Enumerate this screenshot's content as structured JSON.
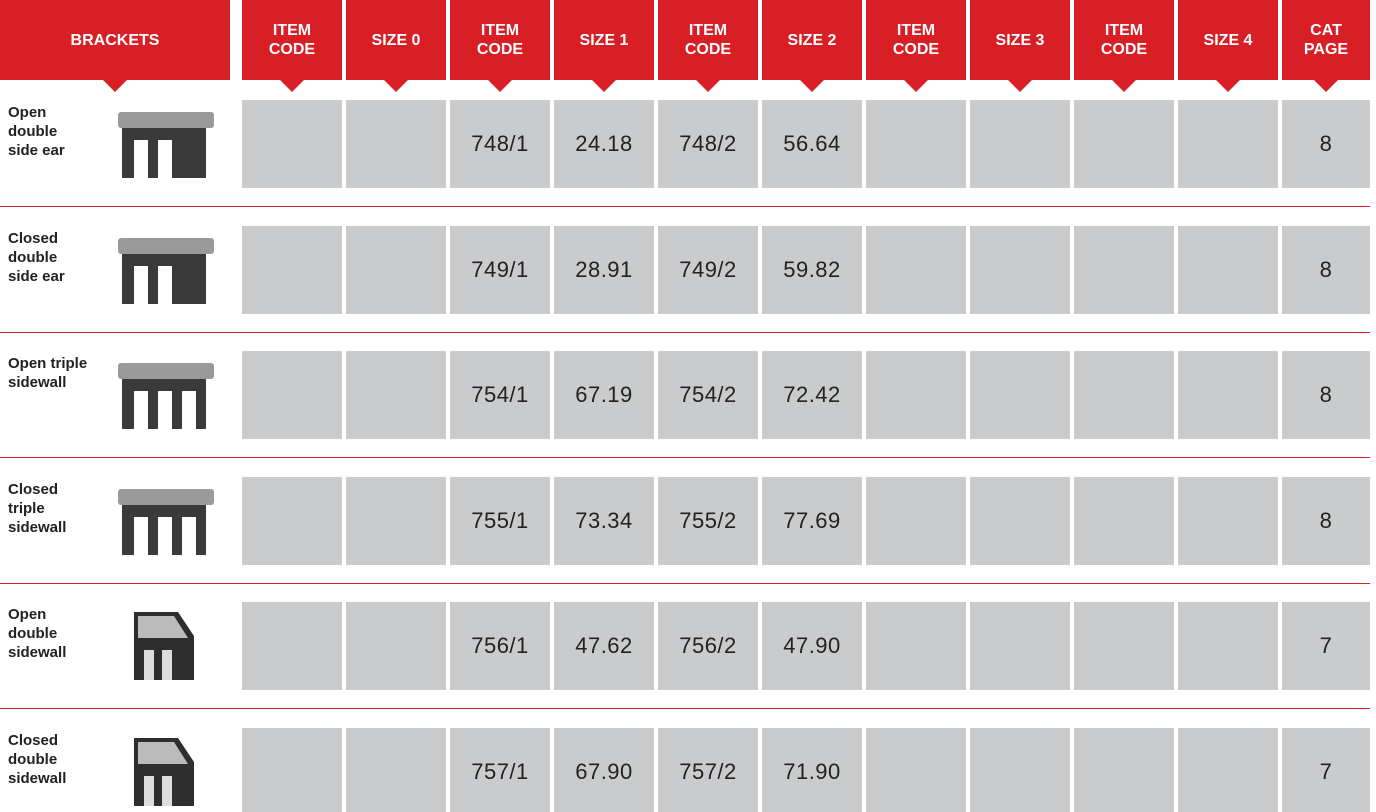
{
  "header": {
    "title": "BRACKETS",
    "columns": [
      "ITEM CODE",
      "SIZE 0",
      "ITEM CODE",
      "SIZE 1",
      "ITEM CODE",
      "SIZE 2",
      "ITEM CODE",
      "SIZE 3",
      "ITEM CODE",
      "SIZE 4",
      "CAT PAGE"
    ]
  },
  "rows": [
    {
      "label": "Open double side ear",
      "cells": [
        null,
        null,
        "748/1",
        "24.18",
        "748/2",
        "56.64",
        null,
        null,
        null,
        null,
        "8"
      ]
    },
    {
      "label": "Closed double side ear",
      "cells": [
        null,
        null,
        "749/1",
        "28.91",
        "749/2",
        "59.82",
        null,
        null,
        null,
        null,
        "8"
      ]
    },
    {
      "label": "Open triple sidewall",
      "cells": [
        null,
        null,
        "754/1",
        "67.19",
        "754/2",
        "72.42",
        null,
        null,
        null,
        null,
        "8"
      ]
    },
    {
      "label": "Closed triple sidewall",
      "cells": [
        null,
        null,
        "755/1",
        "73.34",
        "755/2",
        "77.69",
        null,
        null,
        null,
        null,
        "8"
      ]
    },
    {
      "label": "Open double sidewall",
      "cells": [
        null,
        null,
        "756/1",
        "47.62",
        "756/2",
        "47.90",
        null,
        null,
        null,
        null,
        "7"
      ]
    },
    {
      "label": "Closed double sidewall",
      "cells": [
        null,
        null,
        "757/1",
        "67.90",
        "757/2",
        "71.90",
        null,
        null,
        null,
        null,
        "7"
      ]
    }
  ]
}
